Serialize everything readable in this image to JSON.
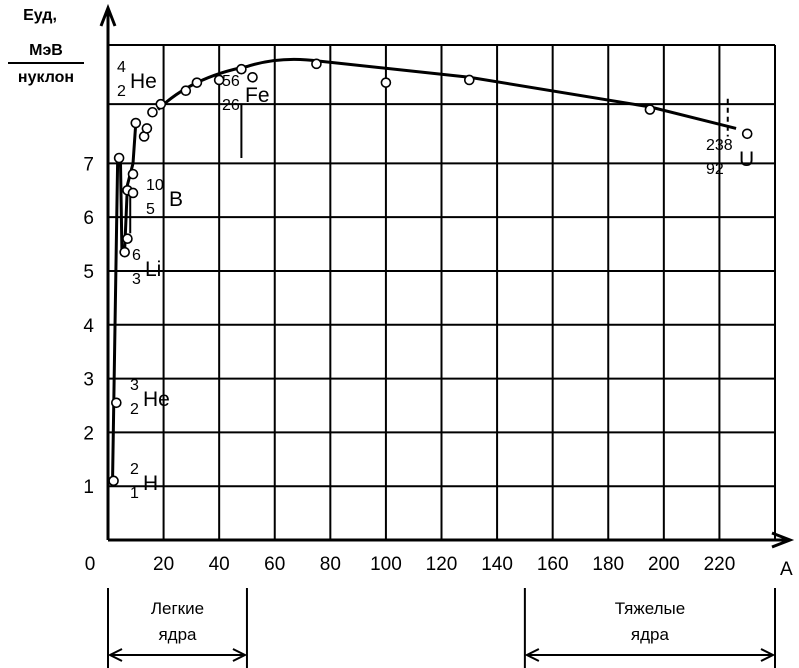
{
  "chart_data": {
    "type": "line",
    "ylabel_top": "Еуд,",
    "ylabel_unit_num": "МэВ",
    "ylabel_unit_den": "нуклон",
    "xlabel": "А",
    "origin_label": "0",
    "xlim": [
      0,
      240
    ],
    "ylim": [
      0,
      9.2
    ],
    "x_ticks": [
      20,
      40,
      60,
      80,
      100,
      120,
      140,
      160,
      180,
      200,
      220
    ],
    "y_ticks": [
      1,
      2,
      3,
      4,
      5,
      6,
      7
    ],
    "series": [
      {
        "points": [
          {
            "x": 2,
            "y": 1.1
          },
          {
            "x": 3,
            "y": 2.55
          },
          {
            "x": 4,
            "y": 7.1
          },
          {
            "x": 6,
            "y": 5.35
          },
          {
            "x": 7,
            "y": 5.6
          },
          {
            "x": 7,
            "y": 6.5
          },
          {
            "x": 9,
            "y": 6.45
          },
          {
            "x": 9,
            "y": 6.8
          },
          {
            "x": 10,
            "y": 7.75
          },
          {
            "x": 13,
            "y": 7.5
          },
          {
            "x": 14,
            "y": 7.65
          },
          {
            "x": 16,
            "y": 7.95
          },
          {
            "x": 19,
            "y": 8.1
          },
          {
            "x": 28,
            "y": 8.35
          },
          {
            "x": 32,
            "y": 8.5
          },
          {
            "x": 40,
            "y": 8.55
          },
          {
            "x": 48,
            "y": 8.75
          },
          {
            "x": 52,
            "y": 8.6
          },
          {
            "x": 75,
            "y": 8.85
          },
          {
            "x": 100,
            "y": 8.5
          },
          {
            "x": 130,
            "y": 8.55
          },
          {
            "x": 195,
            "y": 8.0
          },
          {
            "x": 230,
            "y": 7.55
          }
        ]
      }
    ],
    "annotations": [
      {
        "mass": "4",
        "charge": "2",
        "symbol": "He"
      },
      {
        "mass": "56",
        "charge": "26",
        "symbol": "Fe"
      },
      {
        "mass": "10",
        "charge": "5",
        "symbol": "B"
      },
      {
        "mass": "6",
        "charge": "3",
        "symbol": "Li"
      },
      {
        "mass": "3",
        "charge": "2",
        "symbol": "He"
      },
      {
        "mass": "2",
        "charge": "1",
        "symbol": "H"
      },
      {
        "mass": "238",
        "charge": "92",
        "symbol": "U"
      }
    ],
    "regions": [
      {
        "label_line1": "Легкие",
        "label_line2": "ядра"
      },
      {
        "label_line1": "Тяжелые",
        "label_line2": "ядра"
      }
    ]
  }
}
